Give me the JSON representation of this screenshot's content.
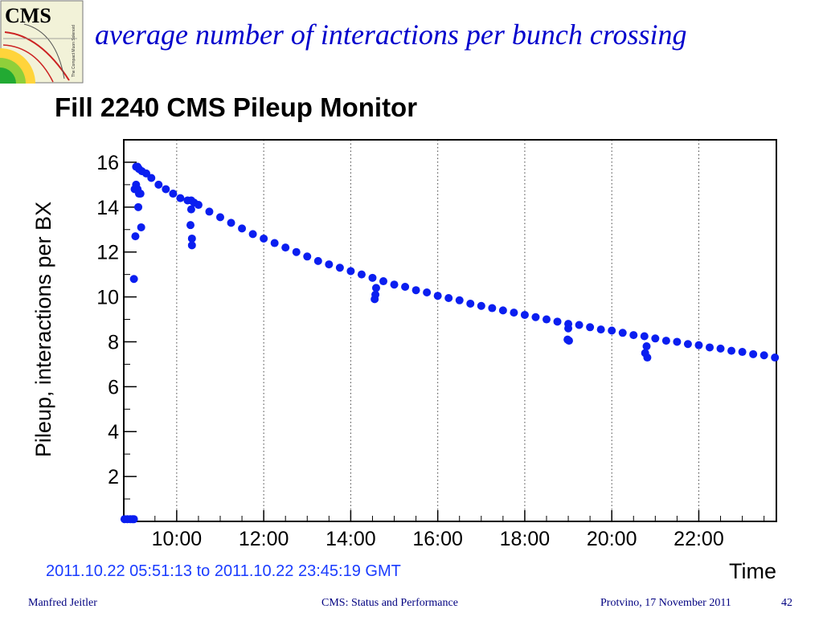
{
  "slide": {
    "title": "average number of interactions per bunch crossing",
    "logo_text": "CMS",
    "logo_subtext": "The Compact Muon Solenoid",
    "footer_left": "Manfred Jeitler",
    "footer_center": "CMS: Status and Performance",
    "footer_right": "Protvino, 17 November 2011",
    "page_number": "42"
  },
  "colors": {
    "title": "#0000cc",
    "footer": "#000080",
    "series": "#0a1ef0",
    "time_range": "#1a3cff"
  },
  "chart_data": {
    "type": "scatter",
    "title": "Fill 2240 CMS Pileup Monitor",
    "xlabel": "Time",
    "ylabel": "Pileup, interactions per BX",
    "time_range_label": "2011.10.22 05:51:13 to 2011.10.22 23:45:19 GMT",
    "xlim": [
      "08:47",
      "23:47"
    ],
    "ylim": [
      0,
      17
    ],
    "x_ticks": [
      "10:00",
      "12:00",
      "14:00",
      "16:00",
      "18:00",
      "20:00",
      "22:00"
    ],
    "y_ticks": [
      2,
      4,
      6,
      8,
      10,
      12,
      14,
      16
    ],
    "grid": "vertical dotted lines at x ticks",
    "series": [
      {
        "values": [
          {
            "x": "08:48",
            "y": 0.1
          },
          {
            "x": "08:52",
            "y": 0.1
          },
          {
            "x": "08:56",
            "y": 0.1
          },
          {
            "x": "08:59",
            "y": 0.1
          },
          {
            "x": "09:01",
            "y": 0.1
          },
          {
            "x": "09:01",
            "y": 10.8
          },
          {
            "x": "09:03",
            "y": 12.7
          },
          {
            "x": "09:02",
            "y": 14.8
          },
          {
            "x": "09:04",
            "y": 15.0
          },
          {
            "x": "09:06",
            "y": 14.8
          },
          {
            "x": "09:07",
            "y": 14.0
          },
          {
            "x": "09:08",
            "y": 14.6
          },
          {
            "x": "09:10",
            "y": 14.6
          },
          {
            "x": "09:11",
            "y": 13.1
          },
          {
            "x": "09:04",
            "y": 15.8
          },
          {
            "x": "09:06",
            "y": 15.8
          },
          {
            "x": "09:08",
            "y": 15.7
          },
          {
            "x": "09:12",
            "y": 15.6
          },
          {
            "x": "09:18",
            "y": 15.5
          },
          {
            "x": "09:25",
            "y": 15.3
          },
          {
            "x": "09:35",
            "y": 15.0
          },
          {
            "x": "09:45",
            "y": 14.8
          },
          {
            "x": "09:55",
            "y": 14.6
          },
          {
            "x": "10:05",
            "y": 14.4
          },
          {
            "x": "10:15",
            "y": 14.3
          },
          {
            "x": "10:20",
            "y": 14.3
          },
          {
            "x": "10:24",
            "y": 14.2
          },
          {
            "x": "10:30",
            "y": 14.1
          },
          {
            "x": "10:20",
            "y": 13.9
          },
          {
            "x": "10:19",
            "y": 13.2
          },
          {
            "x": "10:21",
            "y": 12.6
          },
          {
            "x": "10:21",
            "y": 12.3
          },
          {
            "x": "10:45",
            "y": 13.8
          },
          {
            "x": "11:00",
            "y": 13.55
          },
          {
            "x": "11:15",
            "y": 13.3
          },
          {
            "x": "11:30",
            "y": 13.05
          },
          {
            "x": "11:45",
            "y": 12.8
          },
          {
            "x": "12:00",
            "y": 12.6
          },
          {
            "x": "12:15",
            "y": 12.4
          },
          {
            "x": "12:30",
            "y": 12.2
          },
          {
            "x": "12:45",
            "y": 12.0
          },
          {
            "x": "13:00",
            "y": 11.8
          },
          {
            "x": "13:15",
            "y": 11.6
          },
          {
            "x": "13:30",
            "y": 11.45
          },
          {
            "x": "13:45",
            "y": 11.3
          },
          {
            "x": "14:00",
            "y": 11.15
          },
          {
            "x": "14:15",
            "y": 11.0
          },
          {
            "x": "14:30",
            "y": 10.85
          },
          {
            "x": "14:45",
            "y": 10.7
          },
          {
            "x": "14:35",
            "y": 10.4
          },
          {
            "x": "14:34",
            "y": 10.1
          },
          {
            "x": "14:33",
            "y": 9.9
          },
          {
            "x": "15:00",
            "y": 10.55
          },
          {
            "x": "15:15",
            "y": 10.45
          },
          {
            "x": "15:30",
            "y": 10.3
          },
          {
            "x": "15:45",
            "y": 10.2
          },
          {
            "x": "16:00",
            "y": 10.05
          },
          {
            "x": "16:15",
            "y": 9.95
          },
          {
            "x": "16:30",
            "y": 9.85
          },
          {
            "x": "16:45",
            "y": 9.7
          },
          {
            "x": "17:00",
            "y": 9.6
          },
          {
            "x": "17:15",
            "y": 9.5
          },
          {
            "x": "17:30",
            "y": 9.4
          },
          {
            "x": "17:45",
            "y": 9.3
          },
          {
            "x": "18:00",
            "y": 9.2
          },
          {
            "x": "18:15",
            "y": 9.1
          },
          {
            "x": "18:30",
            "y": 9.0
          },
          {
            "x": "18:45",
            "y": 8.9
          },
          {
            "x": "19:00",
            "y": 8.8
          },
          {
            "x": "19:00",
            "y": 8.6
          },
          {
            "x": "18:59",
            "y": 8.1
          },
          {
            "x": "19:01",
            "y": 8.05
          },
          {
            "x": "19:15",
            "y": 8.75
          },
          {
            "x": "19:30",
            "y": 8.65
          },
          {
            "x": "19:45",
            "y": 8.55
          },
          {
            "x": "20:00",
            "y": 8.5
          },
          {
            "x": "20:15",
            "y": 8.4
          },
          {
            "x": "20:30",
            "y": 8.3
          },
          {
            "x": "20:45",
            "y": 8.25
          },
          {
            "x": "20:48",
            "y": 7.8
          },
          {
            "x": "20:46",
            "y": 7.5
          },
          {
            "x": "20:49",
            "y": 7.3
          },
          {
            "x": "21:00",
            "y": 8.15
          },
          {
            "x": "21:15",
            "y": 8.05
          },
          {
            "x": "21:30",
            "y": 8.0
          },
          {
            "x": "21:45",
            "y": 7.9
          },
          {
            "x": "22:00",
            "y": 7.85
          },
          {
            "x": "22:15",
            "y": 7.75
          },
          {
            "x": "22:30",
            "y": 7.7
          },
          {
            "x": "22:45",
            "y": 7.6
          },
          {
            "x": "23:00",
            "y": 7.55
          },
          {
            "x": "23:15",
            "y": 7.45
          },
          {
            "x": "23:30",
            "y": 7.4
          },
          {
            "x": "23:45",
            "y": 7.3
          }
        ]
      }
    ]
  }
}
